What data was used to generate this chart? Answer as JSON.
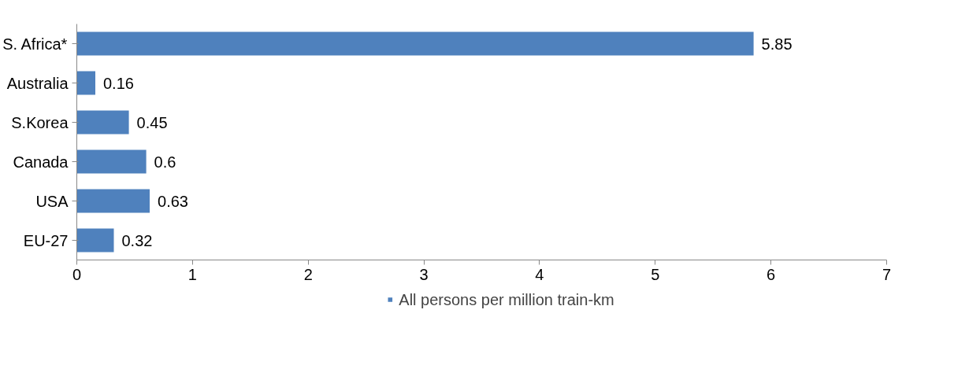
{
  "chart_data": {
    "type": "bar",
    "orientation": "horizontal",
    "categories": [
      "S. Africa*",
      "Australia",
      "S.Korea",
      "Canada",
      "USA",
      "EU-27"
    ],
    "series": [
      {
        "name": "All persons per million train-km",
        "color": "#4f81bd",
        "values": [
          5.85,
          0.16,
          0.45,
          0.6,
          0.63,
          0.32
        ]
      }
    ],
    "xlim": [
      0,
      7
    ],
    "xticks": [
      0,
      1,
      2,
      3,
      4,
      5,
      6,
      7
    ],
    "grid": false,
    "legend": "bottom",
    "data_labels": true
  }
}
